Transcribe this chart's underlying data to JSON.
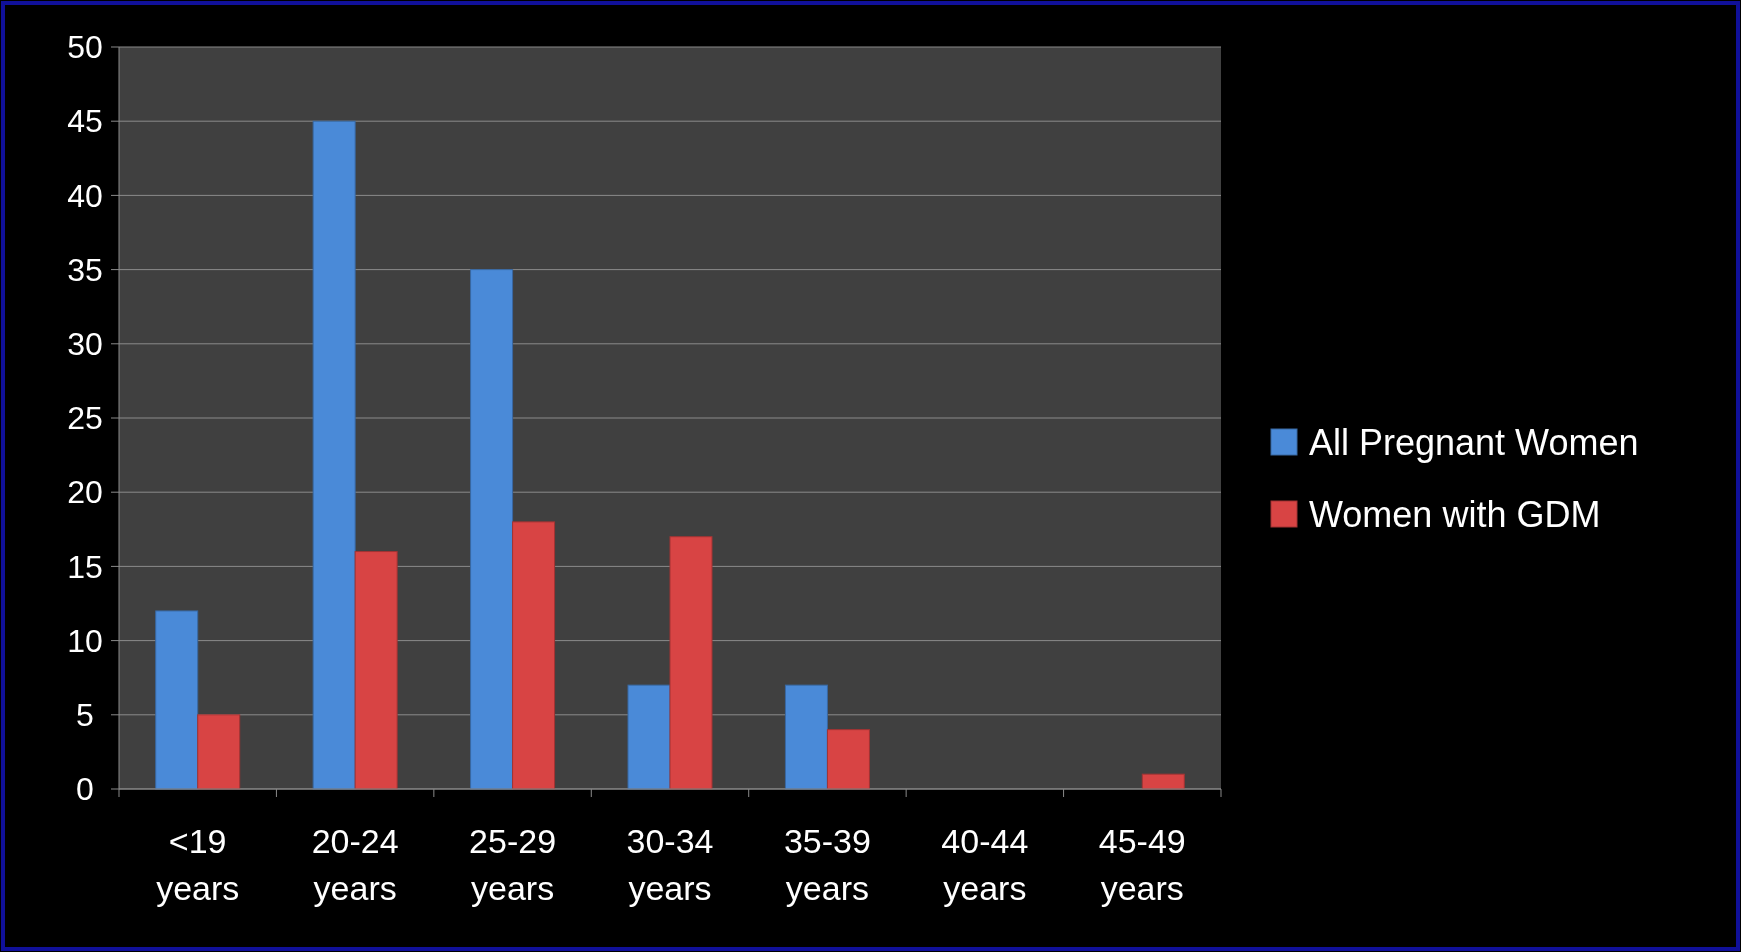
{
  "chart_data": {
    "type": "bar",
    "categories": [
      "<19 years",
      "20-24 years",
      "25-29 years",
      "30-34 years",
      "35-39 years",
      "40-44 years",
      "45-49 years"
    ],
    "series": [
      {
        "name": "All Pregnant Women",
        "color": "#4a8ad8",
        "values": [
          12,
          45,
          35,
          7,
          7,
          0,
          0
        ]
      },
      {
        "name": "Women with GDM",
        "color": "#d84444",
        "values": [
          5,
          16,
          18,
          17,
          4,
          0,
          1
        ]
      }
    ],
    "ylim": [
      0,
      50
    ],
    "yticks": [
      0,
      5,
      10,
      15,
      20,
      25,
      30,
      35,
      40,
      45,
      50
    ],
    "grid": "y",
    "legend": "right"
  }
}
